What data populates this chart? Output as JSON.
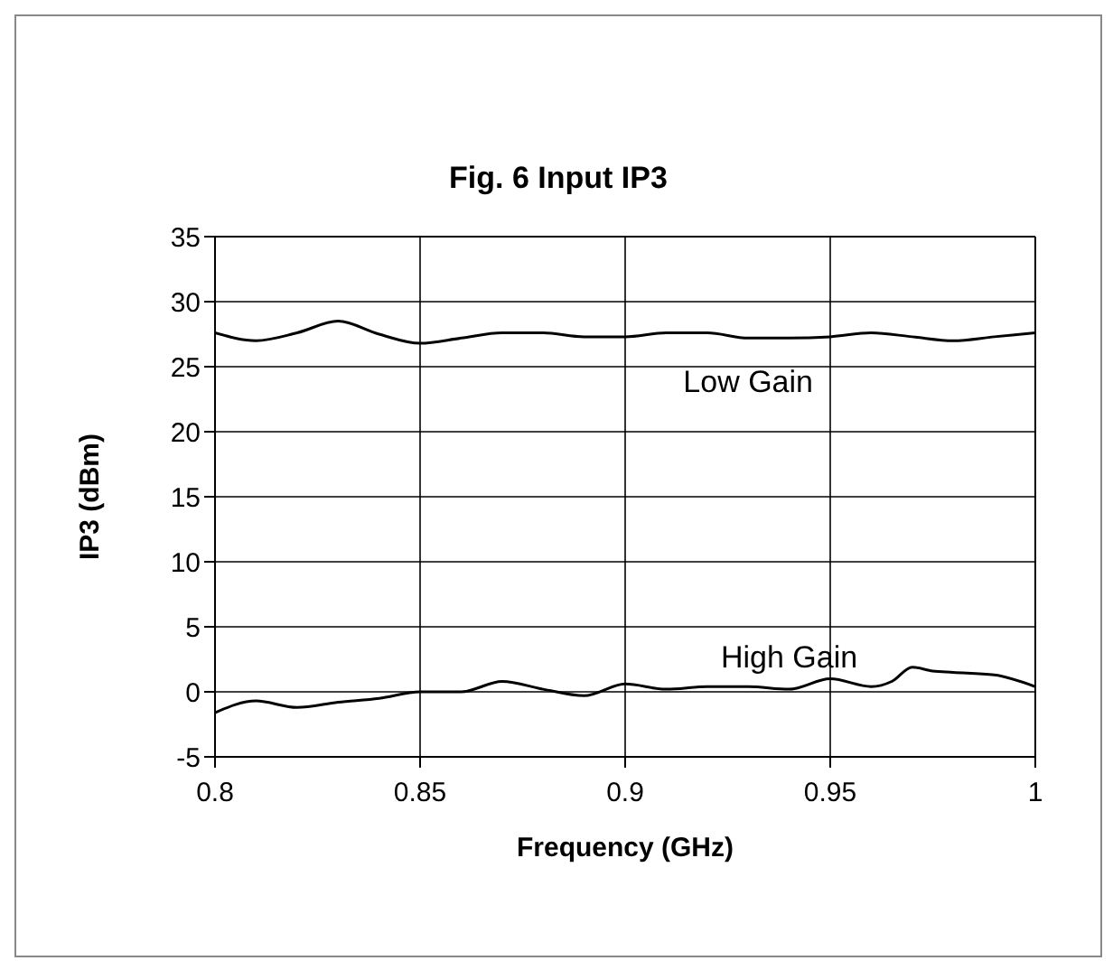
{
  "chart_data": {
    "type": "line",
    "title": "Fig. 6 Input IP3",
    "xlabel": "Frequency (GHz)",
    "ylabel": "IP3 (dBm)",
    "xlim": [
      0.8,
      1
    ],
    "xticks": [
      0.8,
      0.85,
      0.9,
      0.95,
      1
    ],
    "ylim": [
      -5,
      35
    ],
    "yticks": [
      -5,
      0,
      5,
      10,
      15,
      20,
      25,
      30,
      35
    ],
    "grid": true,
    "legend": false,
    "marker": "none",
    "line_style": "solid",
    "series": [
      {
        "name": "Low Gain",
        "color": "#000000",
        "x": [
          0.8,
          0.81,
          0.82,
          0.83,
          0.84,
          0.85,
          0.86,
          0.87,
          0.88,
          0.89,
          0.9,
          0.91,
          0.92,
          0.93,
          0.94,
          0.95,
          0.96,
          0.97,
          0.98,
          0.99,
          1.0
        ],
        "values": [
          27.6,
          27.0,
          27.6,
          28.5,
          27.5,
          26.8,
          27.2,
          27.6,
          27.6,
          27.3,
          27.3,
          27.6,
          27.6,
          27.2,
          27.2,
          27.3,
          27.6,
          27.3,
          27.0,
          27.3,
          27.6
        ]
      },
      {
        "name": "High Gain",
        "color": "#000000",
        "x": [
          0.8,
          0.81,
          0.82,
          0.83,
          0.84,
          0.85,
          0.86,
          0.87,
          0.88,
          0.89,
          0.9,
          0.91,
          0.92,
          0.93,
          0.94,
          0.95,
          0.96,
          0.965,
          0.97,
          0.975,
          0.98,
          0.99,
          1.0
        ],
        "values": [
          -1.6,
          -0.7,
          -1.2,
          -0.8,
          -0.5,
          0,
          0,
          0.8,
          0.2,
          -0.3,
          0.6,
          0.2,
          0.4,
          0.4,
          0.2,
          1.0,
          0.4,
          0.8,
          1.9,
          1.6,
          1.5,
          1.3,
          0.4
        ]
      }
    ]
  }
}
